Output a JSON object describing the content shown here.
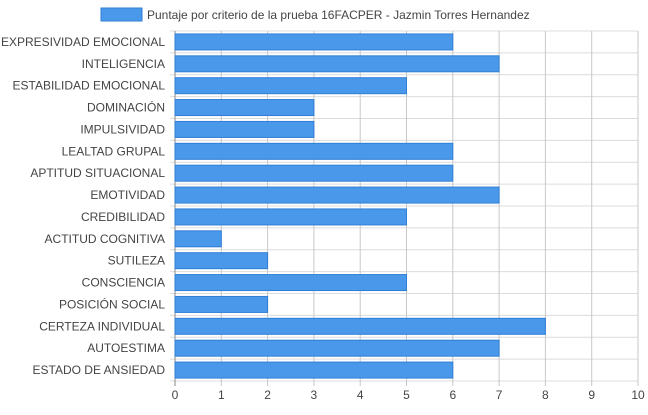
{
  "chart_data": {
    "type": "bar",
    "orientation": "horizontal",
    "categories": [
      "EXPRESIVIDAD EMOCIONAL",
      "INTELIGENCIA",
      "ESTABILIDAD EMOCIONAL",
      "DOMINACIÓN",
      "IMPULSIVIDAD",
      "LEALTAD GRUPAL",
      "APTITUD SITUACIONAL",
      "EMOTIVIDAD",
      "CREDIBILIDAD",
      "ACTITUD COGNITIVA",
      "SUTILEZA",
      "CONSCIENCIA",
      "POSICIÓN SOCIAL",
      "CERTEZA INDIVIDUAL",
      "AUTOESTIMA",
      "ESTADO DE ANSIEDAD"
    ],
    "series": [
      {
        "name": "Puntaje por criterio de la prueba 16FACPER - Jazmin Torres Hernandez",
        "values": [
          6,
          7,
          5,
          3,
          3,
          6,
          6,
          7,
          5,
          1,
          2,
          5,
          2,
          8,
          7,
          6
        ],
        "color": "#4a98ea",
        "border_color": "#2f7fd6"
      }
    ],
    "xlim": [
      0,
      10
    ],
    "x_ticks": [
      0,
      1,
      2,
      3,
      4,
      5,
      6,
      7,
      8,
      9,
      10
    ],
    "grid": true,
    "legend": "top-center",
    "title": "",
    "xlabel": "",
    "ylabel": ""
  },
  "colors": {
    "grid": "#dcdcdc",
    "grid_x": "#c8c8c8",
    "axis": "#888888",
    "text": "#444444"
  }
}
